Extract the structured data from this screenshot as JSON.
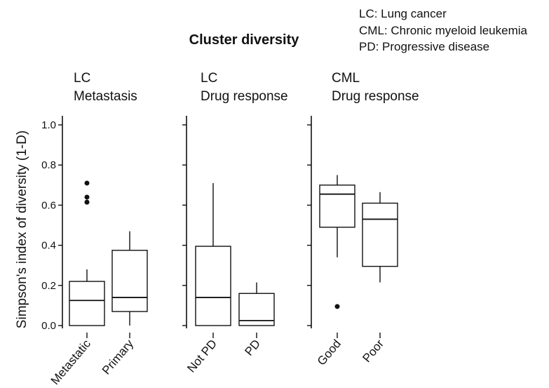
{
  "chart_data": {
    "type": "box",
    "title": "Cluster diversity",
    "ylabel": "Simpson's index of diversity (1-D)",
    "ylim": [
      0,
      1.0
    ],
    "yticks": [
      "0.0",
      "0.2",
      "0.4",
      "0.6",
      "0.8",
      "1.0"
    ],
    "legend_notes": [
      "LC: Lung cancer",
      "CML: Chronic myeloid leukemia",
      "PD: Progressive disease"
    ],
    "panels": [
      {
        "title_line1": "LC",
        "title_line2": "Metastasis",
        "groups": [
          {
            "label": "Metastatic",
            "whisker_low": 0.0,
            "q1": 0.0,
            "median": 0.125,
            "q3": 0.22,
            "whisker_high": 0.28,
            "outliers": [
              0.71,
              0.64,
              0.615
            ]
          },
          {
            "label": "Primary",
            "whisker_low": 0.0,
            "q1": 0.07,
            "median": 0.14,
            "q3": 0.375,
            "whisker_high": 0.47,
            "outliers": []
          }
        ]
      },
      {
        "title_line1": "LC",
        "title_line2": "Drug response",
        "groups": [
          {
            "label": "Not PD",
            "whisker_low": 0.0,
            "q1": 0.0,
            "median": 0.14,
            "q3": 0.395,
            "whisker_high": 0.71,
            "outliers": []
          },
          {
            "label": "PD",
            "whisker_low": 0.0,
            "q1": 0.0,
            "median": 0.025,
            "q3": 0.16,
            "whisker_high": 0.215,
            "outliers": []
          }
        ]
      },
      {
        "title_line1": "CML",
        "title_line2": "Drug response",
        "groups": [
          {
            "label": "Good",
            "whisker_low": 0.34,
            "q1": 0.49,
            "median": 0.655,
            "q3": 0.7,
            "whisker_high": 0.75,
            "outliers": [
              0.095
            ]
          },
          {
            "label": "Poor",
            "whisker_low": 0.215,
            "q1": 0.295,
            "median": 0.53,
            "q3": 0.61,
            "whisker_high": 0.665,
            "outliers": []
          }
        ]
      }
    ]
  }
}
